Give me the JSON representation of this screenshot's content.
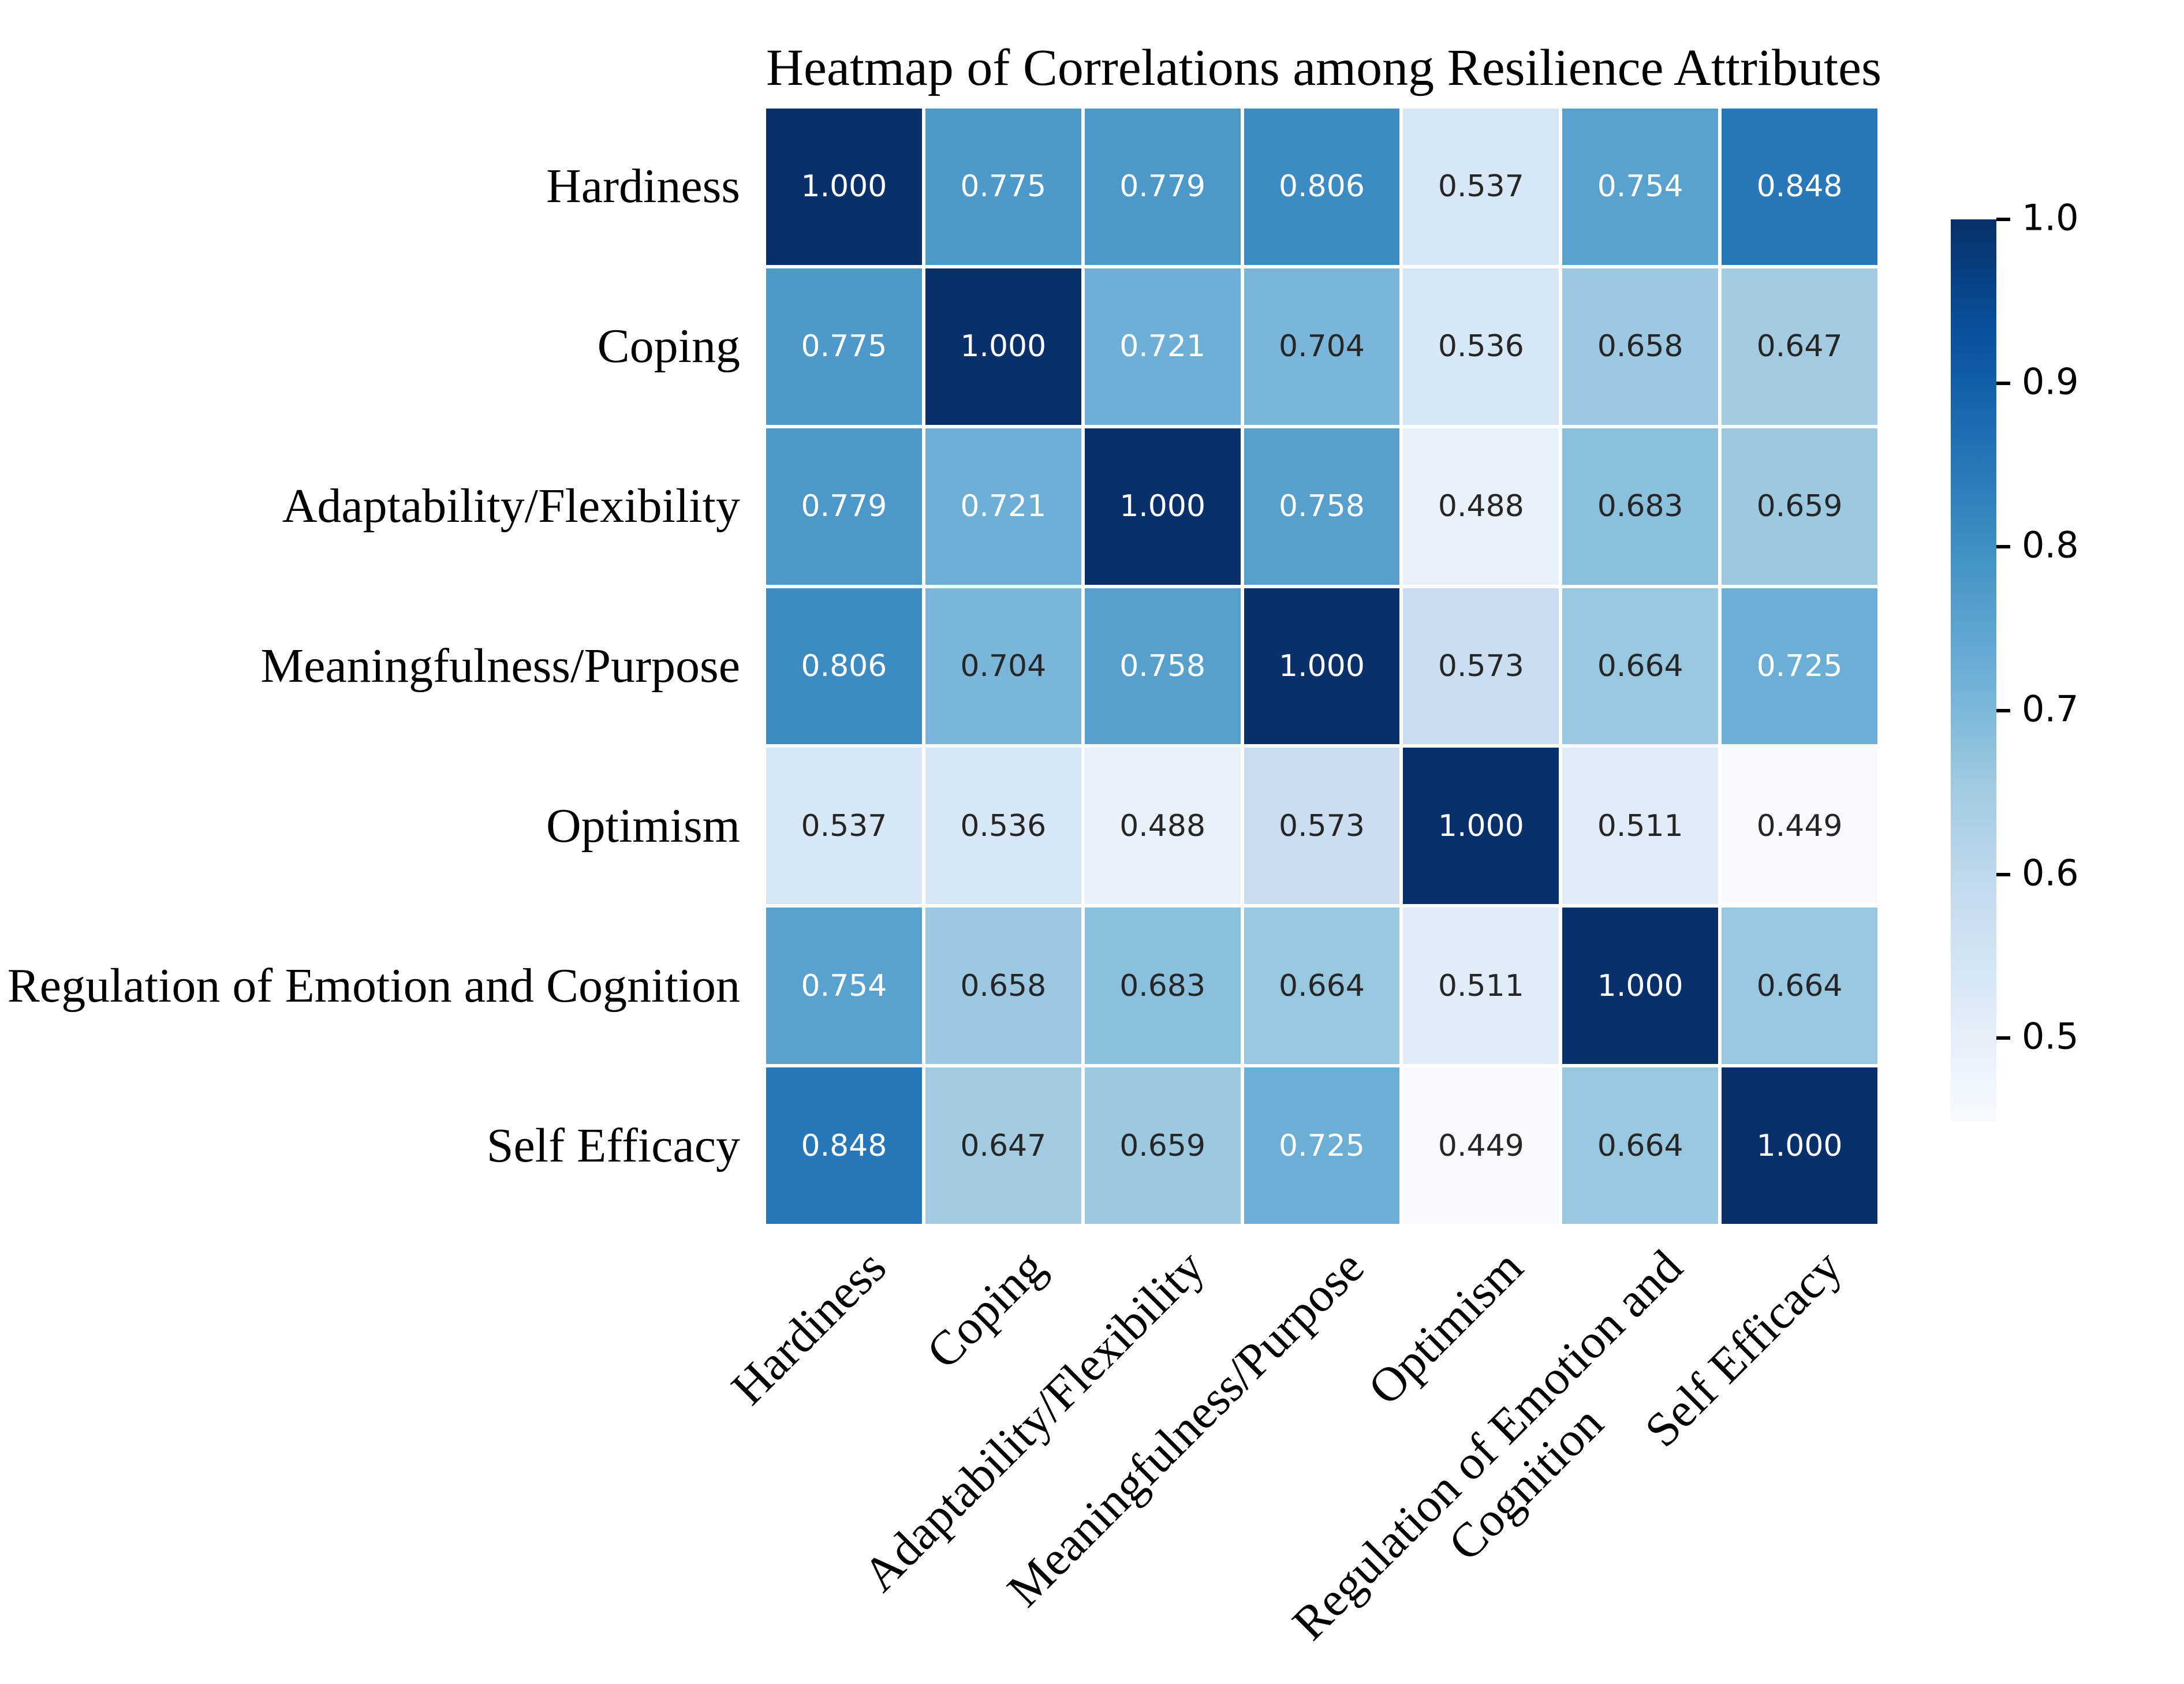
{
  "title": "Heatmap of Correlations among Resilience Attributes",
  "chart_data": {
    "type": "heatmap",
    "title": "Heatmap of Correlations among Resilience Attributes",
    "categories": [
      "Hardiness",
      "Coping",
      "Adaptability/Flexibility",
      "Meaningfulness/Purpose",
      "Optimism",
      "Regulation of Emotion and Cognition",
      "Self Efficacy"
    ],
    "x_tick_labels": [
      "Hardiness",
      "Coping",
      "Adaptability/Flexibility",
      "Meaningfulness/Purpose",
      "Optimism",
      "Regulation of Emotion and\nCognition",
      "Self Efficacy"
    ],
    "matrix": [
      [
        "1.000",
        "0.775",
        "0.779",
        "0.806",
        "0.537",
        "0.754",
        "0.848"
      ],
      [
        "0.775",
        "1.000",
        "0.721",
        "0.704",
        "0.536",
        "0.658",
        "0.647"
      ],
      [
        "0.779",
        "0.721",
        "1.000",
        "0.758",
        "0.488",
        "0.683",
        "0.659"
      ],
      [
        "0.806",
        "0.704",
        "0.758",
        "1.000",
        "0.573",
        "0.664",
        "0.725"
      ],
      [
        "0.537",
        "0.536",
        "0.488",
        "0.573",
        "1.000",
        "0.511",
        "0.449"
      ],
      [
        "0.754",
        "0.658",
        "0.683",
        "0.664",
        "0.511",
        "1.000",
        "0.664"
      ],
      [
        "0.848",
        "0.647",
        "0.659",
        "0.725",
        "0.449",
        "0.664",
        "1.000"
      ]
    ],
    "colorbar": {
      "vmin": 0.449,
      "vmax": 1.0,
      "ticks": [
        {
          "value": 1.0,
          "label": "1.0"
        },
        {
          "value": 0.9,
          "label": "0.9"
        },
        {
          "value": 0.8,
          "label": "0.8"
        },
        {
          "value": 0.7,
          "label": "0.7"
        },
        {
          "value": 0.6,
          "label": "0.6"
        },
        {
          "value": 0.5,
          "label": "0.5"
        }
      ]
    },
    "colormap": {
      "name": "Blues",
      "anchors": [
        "#f7fbff",
        "#deebf7",
        "#c6dbef",
        "#9ecae1",
        "#6baed6",
        "#4292c6",
        "#2171b5",
        "#08519c",
        "#08306b"
      ]
    },
    "annotation_text_colors": {
      "dark": "#262626",
      "light": "#ffffff"
    },
    "grid_line_color": "#ffffff",
    "legend_position": "right"
  }
}
